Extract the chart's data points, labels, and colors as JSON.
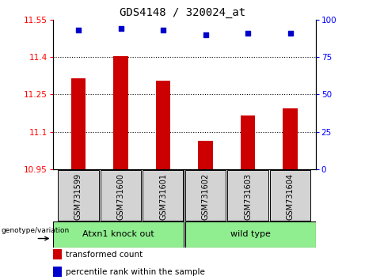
{
  "title": "GDS4148 / 320024_at",
  "samples": [
    "GSM731599",
    "GSM731600",
    "GSM731601",
    "GSM731602",
    "GSM731603",
    "GSM731604"
  ],
  "bar_values": [
    11.315,
    11.405,
    11.305,
    11.065,
    11.165,
    11.195
  ],
  "percentile_values": [
    93,
    94,
    93,
    90,
    91,
    91
  ],
  "y_min": 10.95,
  "y_max": 11.55,
  "y_ticks": [
    10.95,
    11.1,
    11.25,
    11.4,
    11.55
  ],
  "y2_ticks": [
    0,
    25,
    50,
    75,
    100
  ],
  "bar_color": "#cc0000",
  "dot_color": "#0000cc",
  "group1_label": "Atxn1 knock out",
  "group2_label": "wild type",
  "group_color": "#90ee90",
  "sample_bg_color": "#d3d3d3",
  "legend_items": [
    {
      "color": "#cc0000",
      "label": "transformed count"
    },
    {
      "color": "#0000cc",
      "label": "percentile rank within the sample"
    }
  ],
  "genotype_label": "genotype/variation",
  "title_fontsize": 10,
  "tick_fontsize": 7.5,
  "sample_fontsize": 7,
  "group_fontsize": 8,
  "legend_fontsize": 7.5
}
